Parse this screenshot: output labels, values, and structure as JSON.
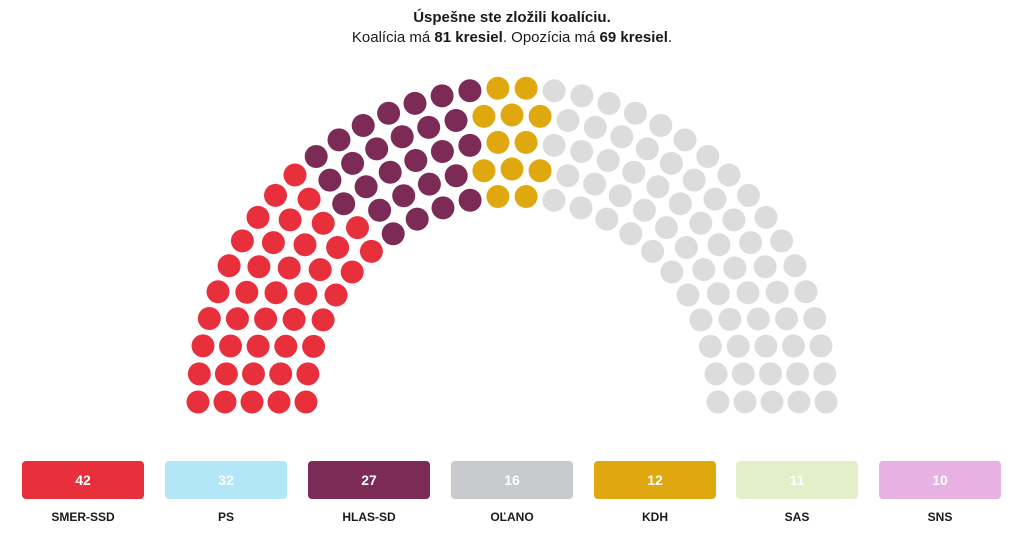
{
  "header": {
    "title": "Úspešne ste zložili koalíciu.",
    "coalition_prefix": "Koalícia má ",
    "coalition_count": "81 kresiel",
    "separator": ". Opozícia má ",
    "opposition_count": "69 kresiel",
    "suffix": "."
  },
  "colors": {
    "smer": "#e8303d",
    "ps": "#b3e6f7",
    "hlas": "#7c2a56",
    "olano": "#c8cacd",
    "kdh": "#e0a80f",
    "sas": "#e3efc8",
    "sns": "#e7b1e3",
    "opposition_seat": "#dcdcdc"
  },
  "parliament": {
    "coalition": [
      {
        "party": "SMER-SSD",
        "seats": 42,
        "color": "#e8303d"
      },
      {
        "party": "HLAS-SD",
        "seats": 27,
        "color": "#7c2a56"
      },
      {
        "party": "KDH",
        "seats": 12,
        "color": "#e0a80f"
      }
    ],
    "opposition_seats": 69,
    "total_seats": 150
  },
  "parties": [
    {
      "name": "SMER-SSD",
      "seats": "42",
      "color": "#e8303d",
      "selected": true
    },
    {
      "name": "PS",
      "seats": "32",
      "color": "#b3e6f7",
      "selected": false
    },
    {
      "name": "HLAS-SD",
      "seats": "27",
      "color": "#7c2a56",
      "selected": true
    },
    {
      "name": "OĽANO",
      "seats": "16",
      "color": "#c8cacd",
      "selected": false
    },
    {
      "name": "KDH",
      "seats": "12",
      "color": "#e0a80f",
      "selected": true
    },
    {
      "name": "SAS",
      "seats": "11",
      "color": "#e3efc8",
      "selected": false
    },
    {
      "name": "SNS",
      "seats": "10",
      "color": "#e7b1e3",
      "selected": false
    }
  ]
}
